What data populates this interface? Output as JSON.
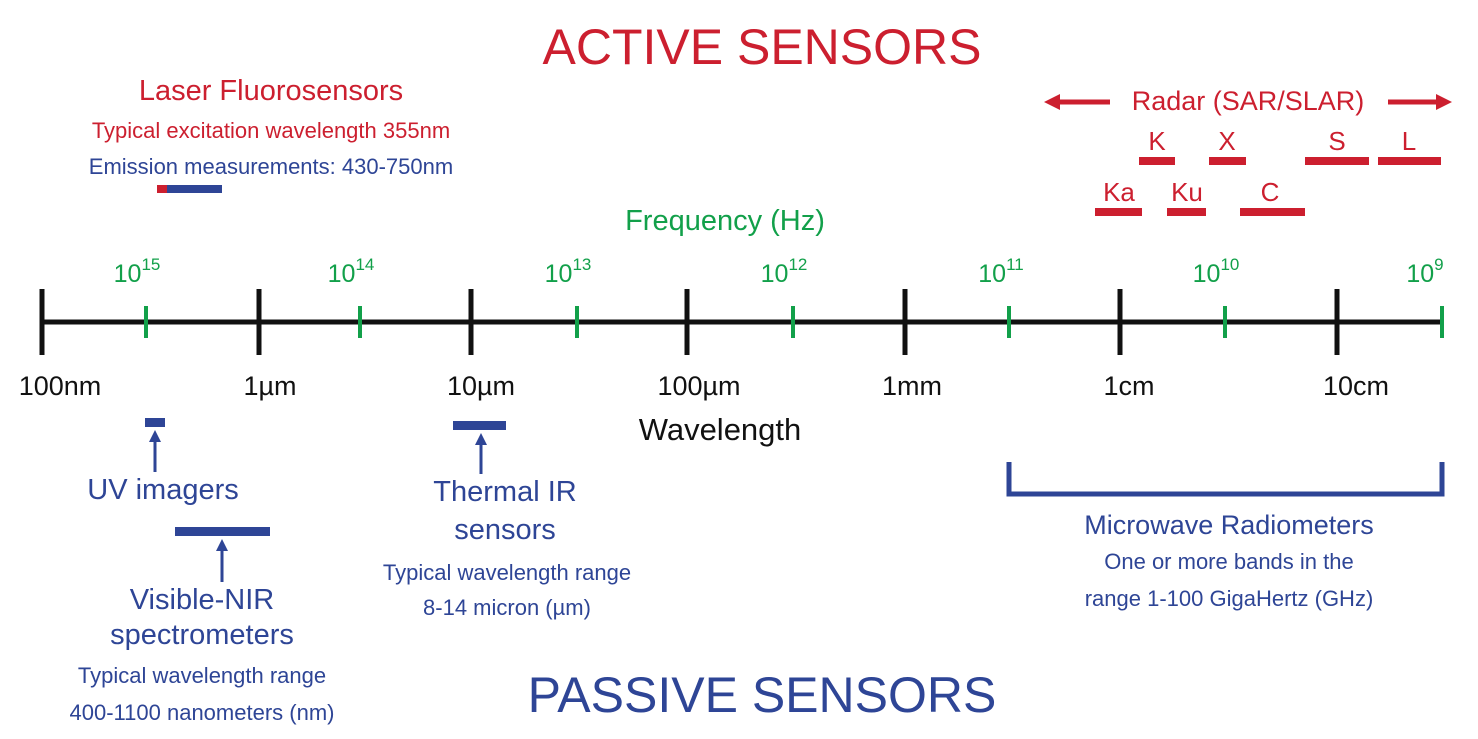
{
  "colors": {
    "active": "#cc1f2f",
    "passive": "#2e4596",
    "frequency": "#12a04a",
    "axis": "#111111"
  },
  "titles": {
    "active": "ACTIVE SENSORS",
    "passive": "PASSIVE SENSORS"
  },
  "frequency": {
    "label": "Frequency (Hz)",
    "base": "10",
    "exponents": [
      "15",
      "14",
      "13",
      "12",
      "11",
      "10",
      "9"
    ]
  },
  "wavelength": {
    "label": "Wavelength",
    "ticks": [
      "100nm",
      "1µm",
      "10µm",
      "100µm",
      "1mm",
      "1cm",
      "10cm"
    ]
  },
  "laser": {
    "title": "Laser Fluorosensors",
    "excitation": "Typical excitation wavelength 355nm",
    "emission": "Emission measurements:  430-750nm"
  },
  "radar": {
    "title": "Radar (SAR/SLAR)",
    "bands_top": [
      "K",
      "X",
      "S",
      "L"
    ],
    "bands_bottom": [
      "Ka",
      "Ku",
      "C"
    ]
  },
  "uv": {
    "label": "UV imagers"
  },
  "visnir": {
    "line1": "Visible-NIR",
    "line2": "spectrometers",
    "range_label": "Typical wavelength range",
    "range": "400-1100 nanometers (nm)"
  },
  "thermal": {
    "line1": "Thermal IR",
    "line2": "sensors",
    "range_label": "Typical wavelength range",
    "range": "8-14 micron (µm)"
  },
  "microwave": {
    "title": "Microwave Radiometers",
    "line1": "One or more bands in the",
    "line2": "range 1-100 GigaHertz (GHz)"
  }
}
